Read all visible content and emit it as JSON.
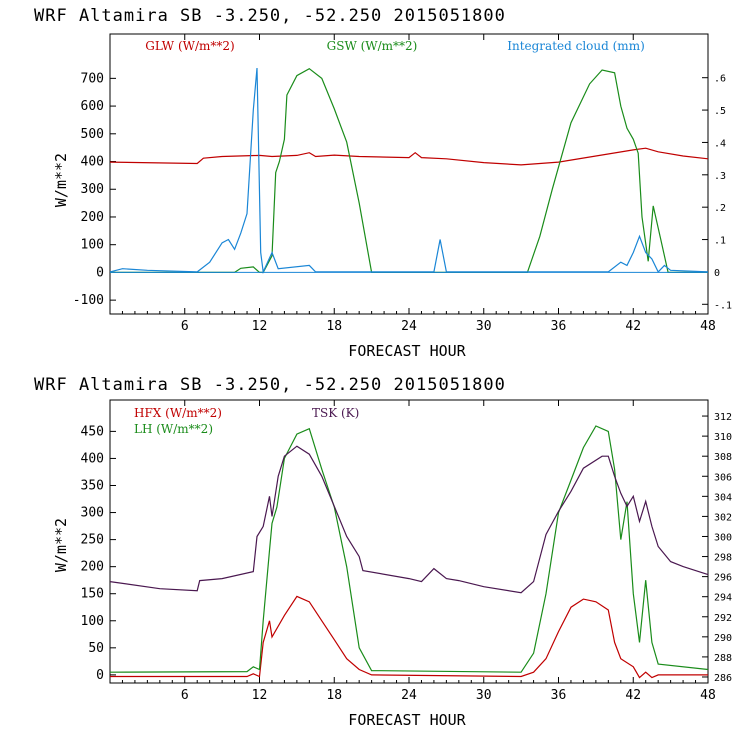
{
  "chart_data": [
    {
      "type": "line",
      "title": "WRF   Altamira  SB  -3.250, -52.250  2015051800",
      "xlabel": "FORECAST HOUR",
      "ylabel": "W/m**2",
      "xlim": [
        0,
        48
      ],
      "ylim": [
        -150,
        860
      ],
      "x_ticks": [
        6,
        12,
        18,
        24,
        30,
        36,
        42,
        48
      ],
      "y_ticks": [
        -100,
        0,
        100,
        200,
        300,
        400,
        500,
        600,
        700
      ],
      "y2label": "",
      "y2lim": [
        -0.13,
        0.735
      ],
      "y2_ticks": [
        -0.1,
        0,
        0.1,
        0.2,
        0.3,
        0.4,
        0.5,
        0.6
      ],
      "y2_tick_labels": [
        "-.1",
        "0",
        ".1",
        ".2",
        ".3",
        ".4",
        ".5",
        ".6"
      ],
      "legend_position": "top",
      "series": [
        {
          "name": "GLW (W/m**2)",
          "color": "#c00000",
          "axis": "left",
          "points": [
            [
              0,
              398
            ],
            [
              7,
              393
            ],
            [
              7.5,
              412
            ],
            [
              9,
              418
            ],
            [
              12,
              422
            ],
            [
              13,
              418
            ],
            [
              15,
              422
            ],
            [
              16,
              432
            ],
            [
              16.5,
              418
            ],
            [
              18,
              423
            ],
            [
              20,
              418
            ],
            [
              24,
              414
            ],
            [
              24.5,
              432
            ],
            [
              25,
              414
            ],
            [
              27,
              410
            ],
            [
              30,
              396
            ],
            [
              33,
              388
            ],
            [
              36,
              398
            ],
            [
              39,
              420
            ],
            [
              42,
              442
            ],
            [
              43,
              448
            ],
            [
              44,
              435
            ],
            [
              46,
              420
            ],
            [
              48,
              410
            ]
          ]
        },
        {
          "name": "GSW (W/m**2)",
          "color": "#1a8c1a",
          "axis": "left",
          "points": [
            [
              0,
              0
            ],
            [
              9,
              0
            ],
            [
              10,
              0
            ],
            [
              10.5,
              15
            ],
            [
              11.5,
              20
            ],
            [
              12,
              0
            ],
            [
              12.3,
              0
            ],
            [
              13,
              60
            ],
            [
              13.3,
              360
            ],
            [
              13.6,
              400
            ],
            [
              14,
              480
            ],
            [
              14.2,
              640
            ],
            [
              15,
              710
            ],
            [
              16,
              735
            ],
            [
              17,
              700
            ],
            [
              18,
              590
            ],
            [
              19,
              470
            ],
            [
              20,
              250
            ],
            [
              21,
              0
            ],
            [
              33.5,
              0
            ],
            [
              34.5,
              130
            ],
            [
              35.5,
              300
            ],
            [
              37,
              540
            ],
            [
              38.5,
              680
            ],
            [
              39.5,
              730
            ],
            [
              40.5,
              720
            ],
            [
              41,
              600
            ],
            [
              41.5,
              520
            ],
            [
              42,
              480
            ],
            [
              42.4,
              430
            ],
            [
              42.7,
              200
            ],
            [
              43.2,
              40
            ],
            [
              43.6,
              240
            ],
            [
              44.2,
              120
            ],
            [
              44.8,
              0
            ],
            [
              48,
              0
            ]
          ]
        },
        {
          "name": "Integrated cloud (mm)",
          "color": "#1a86d6",
          "axis": "right",
          "points": [
            [
              0,
              0
            ],
            [
              1,
              0.01
            ],
            [
              3,
              0.005
            ],
            [
              7,
              0
            ],
            [
              8,
              0.03
            ],
            [
              9,
              0.09
            ],
            [
              9.5,
              0.1
            ],
            [
              10,
              0.07
            ],
            [
              10.5,
              0.12
            ],
            [
              11,
              0.18
            ],
            [
              11.5,
              0.5
            ],
            [
              11.8,
              0.63
            ],
            [
              12.1,
              0.06
            ],
            [
              12.3,
              0
            ],
            [
              13,
              0.06
            ],
            [
              13.5,
              0.01
            ],
            [
              16,
              0.02
            ],
            [
              16.5,
              0
            ],
            [
              24,
              0
            ],
            [
              26,
              0
            ],
            [
              26.5,
              0.1
            ],
            [
              27,
              0
            ],
            [
              40,
              0
            ],
            [
              41,
              0.03
            ],
            [
              41.5,
              0.02
            ],
            [
              42,
              0.06
            ],
            [
              42.5,
              0.11
            ],
            [
              43,
              0.06
            ],
            [
              43.5,
              0.04
            ],
            [
              44,
              0
            ],
            [
              44.5,
              0.02
            ],
            [
              45,
              0.005
            ],
            [
              48,
              0
            ]
          ]
        }
      ]
    },
    {
      "type": "line",
      "title": "WRF   Altamira  SB  -3.250, -52.250  2015051800",
      "xlabel": "FORECAST HOUR",
      "ylabel": "W/m**2",
      "xlim": [
        0,
        48
      ],
      "ylim": [
        -15,
        508
      ],
      "x_ticks": [
        6,
        12,
        18,
        24,
        30,
        36,
        42,
        48
      ],
      "y_ticks": [
        0,
        50,
        100,
        150,
        200,
        250,
        300,
        350,
        400,
        450
      ],
      "y2label": "",
      "y2lim": [
        285.4,
        313.6
      ],
      "y2_ticks": [
        286,
        288,
        290,
        292,
        294,
        296,
        298,
        300,
        302,
        304,
        306,
        308,
        310,
        312
      ],
      "legend_position": "top-left",
      "series": [
        {
          "name": "HFX (W/m**2)",
          "color": "#c00000",
          "axis": "left",
          "points": [
            [
              0,
              -3
            ],
            [
              11,
              -3
            ],
            [
              11.5,
              2
            ],
            [
              12,
              -3
            ],
            [
              12.3,
              60
            ],
            [
              12.8,
              100
            ],
            [
              13,
              70
            ],
            [
              14,
              110
            ],
            [
              15,
              145
            ],
            [
              16,
              135
            ],
            [
              17,
              100
            ],
            [
              18,
              65
            ],
            [
              19,
              30
            ],
            [
              20,
              10
            ],
            [
              21,
              0
            ],
            [
              33,
              -3
            ],
            [
              34,
              5
            ],
            [
              35,
              30
            ],
            [
              36,
              80
            ],
            [
              37,
              125
            ],
            [
              38,
              140
            ],
            [
              39,
              135
            ],
            [
              40,
              120
            ],
            [
              40.5,
              60
            ],
            [
              41,
              30
            ],
            [
              42,
              15
            ],
            [
              42.5,
              -5
            ],
            [
              43,
              5
            ],
            [
              43.5,
              -5
            ],
            [
              44,
              0
            ],
            [
              48,
              0
            ]
          ]
        },
        {
          "name": "LH (W/m**2)",
          "color": "#1a8c1a",
          "axis": "left",
          "points": [
            [
              0,
              5
            ],
            [
              11,
              6
            ],
            [
              11.5,
              15
            ],
            [
              12,
              10
            ],
            [
              12.3,
              100
            ],
            [
              12.8,
              230
            ],
            [
              13,
              280
            ],
            [
              13.4,
              310
            ],
            [
              14,
              400
            ],
            [
              15,
              445
            ],
            [
              16,
              455
            ],
            [
              17,
              380
            ],
            [
              18,
              310
            ],
            [
              19,
              200
            ],
            [
              20,
              50
            ],
            [
              21,
              8
            ],
            [
              33,
              5
            ],
            [
              34,
              40
            ],
            [
              35,
              150
            ],
            [
              36,
              300
            ],
            [
              37,
              360
            ],
            [
              38,
              420
            ],
            [
              39,
              460
            ],
            [
              40,
              450
            ],
            [
              40.5,
              380
            ],
            [
              41,
              250
            ],
            [
              41.5,
              320
            ],
            [
              42,
              150
            ],
            [
              42.5,
              60
            ],
            [
              43,
              175
            ],
            [
              43.5,
              60
            ],
            [
              44,
              20
            ],
            [
              48,
              10
            ]
          ]
        },
        {
          "name": "TSK (K)",
          "color": "#4a1850",
          "axis": "right",
          "points": [
            [
              0,
              295.5
            ],
            [
              4,
              294.8
            ],
            [
              7,
              294.6
            ],
            [
              7.2,
              295.6
            ],
            [
              9,
              295.8
            ],
            [
              11.5,
              296.5
            ],
            [
              11.8,
              300
            ],
            [
              12.3,
              301
            ],
            [
              12.8,
              304
            ],
            [
              13,
              302
            ],
            [
              13.5,
              306
            ],
            [
              14,
              308
            ],
            [
              15,
              309
            ],
            [
              16,
              308.2
            ],
            [
              17,
              306
            ],
            [
              18,
              303
            ],
            [
              19,
              300
            ],
            [
              20,
              298
            ],
            [
              20.3,
              296.6
            ],
            [
              24,
              295.8
            ],
            [
              25,
              295.5
            ],
            [
              26,
              296.8
            ],
            [
              27,
              295.8
            ],
            [
              28,
              295.6
            ],
            [
              30,
              295
            ],
            [
              33,
              294.4
            ],
            [
              34,
              295.5
            ],
            [
              35,
              300.2
            ],
            [
              36,
              302.5
            ],
            [
              37,
              304.5
            ],
            [
              38,
              306.8
            ],
            [
              39.5,
              308
            ],
            [
              40,
              308
            ],
            [
              40.5,
              306
            ],
            [
              41,
              304.3
            ],
            [
              41.5,
              303
            ],
            [
              42,
              304
            ],
            [
              42.5,
              301.5
            ],
            [
              43,
              303.5
            ],
            [
              43.5,
              301
            ],
            [
              44,
              299
            ],
            [
              45,
              297.5
            ],
            [
              46,
              297
            ],
            [
              48,
              296.2
            ]
          ]
        }
      ]
    }
  ]
}
